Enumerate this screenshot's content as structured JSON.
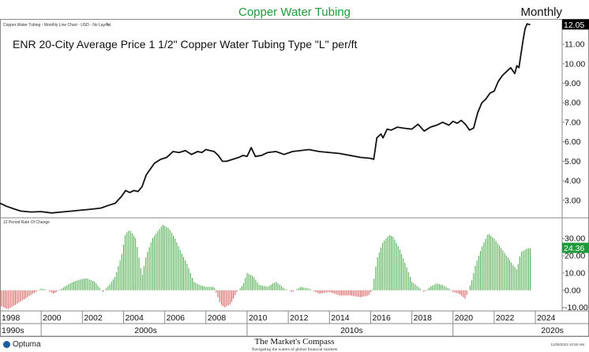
{
  "header": {
    "title": "Copper Water Tubing",
    "period": "Monthly",
    "top_label": "Copper Water Tubing - Monthly Line Chart - USD - No Layout"
  },
  "footer": {
    "logo_text": "Optuma",
    "brand": "The Market's Compass",
    "tagline": "Navigating the waters of global financial markets",
    "timestamp": "11/09/2023 10:50 AM"
  },
  "colors": {
    "price_line": "#111111",
    "up_bar": "#2e9e2e",
    "down_bar": "#d33c3c",
    "accent_green": "#1f9a3a",
    "last_price_bg": "#000000",
    "last_roc_bg": "#1f9a3a"
  },
  "chart_data": [
    {
      "type": "line",
      "title": "ENR 20-City Average Price 1 1/2\" Copper Water Tubing Type \"L\" per/ft",
      "xlabel": "",
      "ylabel": "",
      "x_range": [
        1998.0,
        2025.3
      ],
      "ylim": [
        2.1,
        12.3
      ],
      "y_ticks": [
        "3.00",
        "4.00",
        "5.00",
        "6.00",
        "7.00",
        "8.00",
        "9.00",
        "10.00",
        "11.00"
      ],
      "last_value_label": "12.05",
      "grid": false,
      "points": [
        [
          1998.0,
          2.85
        ],
        [
          1998.3,
          2.7
        ],
        [
          1998.7,
          2.55
        ],
        [
          1999.0,
          2.45
        ],
        [
          1999.5,
          2.4
        ],
        [
          2000.0,
          2.42
        ],
        [
          2000.5,
          2.35
        ],
        [
          2001.0,
          2.4
        ],
        [
          2001.5,
          2.45
        ],
        [
          2002.0,
          2.5
        ],
        [
          2002.5,
          2.55
        ],
        [
          2002.9,
          2.6
        ],
        [
          2003.3,
          2.75
        ],
        [
          2003.6,
          2.85
        ],
        [
          2003.9,
          3.2
        ],
        [
          2004.1,
          3.5
        ],
        [
          2004.3,
          3.4
        ],
        [
          2004.5,
          3.5
        ],
        [
          2004.7,
          3.45
        ],
        [
          2004.9,
          3.7
        ],
        [
          2005.1,
          4.3
        ],
        [
          2005.3,
          4.6
        ],
        [
          2005.5,
          4.9
        ],
        [
          2005.8,
          5.1
        ],
        [
          2006.1,
          5.2
        ],
        [
          2006.4,
          5.5
        ],
        [
          2006.7,
          5.45
        ],
        [
          2007.0,
          5.55
        ],
        [
          2007.3,
          5.35
        ],
        [
          2007.6,
          5.5
        ],
        [
          2007.8,
          5.45
        ],
        [
          2008.0,
          5.6
        ],
        [
          2008.2,
          5.55
        ],
        [
          2008.4,
          5.5
        ],
        [
          2008.6,
          5.3
        ],
        [
          2008.8,
          5.0
        ],
        [
          2009.0,
          5.0
        ],
        [
          2009.3,
          5.1
        ],
        [
          2009.6,
          5.2
        ],
        [
          2009.8,
          5.3
        ],
        [
          2010.0,
          5.25
        ],
        [
          2010.2,
          5.7
        ],
        [
          2010.4,
          5.25
        ],
        [
          2010.7,
          5.3
        ],
        [
          2011.0,
          5.45
        ],
        [
          2011.4,
          5.5
        ],
        [
          2011.8,
          5.35
        ],
        [
          2012.2,
          5.5
        ],
        [
          2012.6,
          5.55
        ],
        [
          2013.0,
          5.6
        ],
        [
          2013.5,
          5.5
        ],
        [
          2014.0,
          5.45
        ],
        [
          2014.5,
          5.4
        ],
        [
          2015.0,
          5.3
        ],
        [
          2015.5,
          5.2
        ],
        [
          2016.0,
          5.15
        ],
        [
          2016.15,
          5.1
        ],
        [
          2016.3,
          6.2
        ],
        [
          2016.5,
          6.4
        ],
        [
          2016.6,
          6.2
        ],
        [
          2016.8,
          6.65
        ],
        [
          2017.0,
          6.6
        ],
        [
          2017.3,
          6.75
        ],
        [
          2017.6,
          6.7
        ],
        [
          2018.0,
          6.65
        ],
        [
          2018.3,
          6.9
        ],
        [
          2018.6,
          6.55
        ],
        [
          2018.9,
          6.75
        ],
        [
          2019.2,
          6.85
        ],
        [
          2019.5,
          7.0
        ],
        [
          2019.8,
          6.85
        ],
        [
          2020.0,
          7.05
        ],
        [
          2020.2,
          6.95
        ],
        [
          2020.4,
          7.1
        ],
        [
          2020.6,
          6.9
        ],
        [
          2020.8,
          6.6
        ],
        [
          2021.0,
          6.7
        ],
        [
          2021.2,
          7.5
        ],
        [
          2021.4,
          8.0
        ],
        [
          2021.6,
          8.2
        ],
        [
          2021.8,
          8.5
        ],
        [
          2022.0,
          8.6
        ],
        [
          2022.2,
          9.1
        ],
        [
          2022.4,
          9.4
        ],
        [
          2022.6,
          9.6
        ],
        [
          2022.8,
          9.8
        ],
        [
          2023.0,
          9.5
        ],
        [
          2023.1,
          9.9
        ],
        [
          2023.2,
          9.8
        ],
        [
          2023.3,
          10.5
        ],
        [
          2023.4,
          11.2
        ],
        [
          2023.5,
          11.8
        ],
        [
          2023.6,
          12.05
        ],
        [
          2023.75,
          12.0
        ]
      ]
    },
    {
      "type": "bar",
      "title": "12 Period Rate Of Change",
      "xlabel": "",
      "ylabel": "",
      "x_range": [
        1998.0,
        2025.3
      ],
      "ylim": [
        -12,
        42
      ],
      "y_ticks": [
        "-10.00",
        "0.00",
        "10.00",
        "20.00",
        "30.00"
      ],
      "last_value_label": "24.36",
      "grid": false,
      "x_ticks": [
        "1998",
        "2000",
        "2002",
        "2004",
        "2006",
        "2008",
        "2010",
        "2012",
        "2014",
        "2016",
        "2018",
        "2020",
        "2022",
        "2024"
      ],
      "decades": [
        "1990s",
        "2000s",
        "2010s",
        "2020s"
      ],
      "profile": [
        [
          1998.0,
          -9
        ],
        [
          1998.4,
          -11
        ],
        [
          1998.8,
          -8
        ],
        [
          1999.2,
          -5
        ],
        [
          1999.6,
          -2
        ],
        [
          2000.0,
          1
        ],
        [
          2000.3,
          0
        ],
        [
          2000.6,
          -2
        ],
        [
          2001.0,
          1
        ],
        [
          2001.4,
          4
        ],
        [
          2001.8,
          6
        ],
        [
          2002.2,
          7
        ],
        [
          2002.6,
          5
        ],
        [
          2003.0,
          -1
        ],
        [
          2003.3,
          3
        ],
        [
          2003.6,
          8
        ],
        [
          2003.9,
          20
        ],
        [
          2004.1,
          33
        ],
        [
          2004.3,
          35
        ],
        [
          2004.6,
          30
        ],
        [
          2004.9,
          8
        ],
        [
          2005.1,
          20
        ],
        [
          2005.4,
          30
        ],
        [
          2005.7,
          35
        ],
        [
          2005.9,
          38
        ],
        [
          2006.2,
          36
        ],
        [
          2006.5,
          30
        ],
        [
          2006.8,
          22
        ],
        [
          2007.1,
          15
        ],
        [
          2007.4,
          5
        ],
        [
          2007.7,
          3
        ],
        [
          2008.0,
          2
        ],
        [
          2008.4,
          2
        ],
        [
          2008.7,
          -8
        ],
        [
          2008.9,
          -10
        ],
        [
          2009.2,
          -8
        ],
        [
          2009.5,
          -1
        ],
        [
          2009.8,
          3
        ],
        [
          2010.0,
          10
        ],
        [
          2010.3,
          8
        ],
        [
          2010.6,
          3
        ],
        [
          2011.0,
          2
        ],
        [
          2011.4,
          5
        ],
        [
          2011.8,
          1
        ],
        [
          2012.2,
          -1
        ],
        [
          2012.6,
          2
        ],
        [
          2013.0,
          1
        ],
        [
          2013.5,
          -2
        ],
        [
          2014.0,
          -1
        ],
        [
          2014.5,
          -3
        ],
        [
          2015.0,
          -3
        ],
        [
          2015.5,
          -4
        ],
        [
          2015.9,
          -3
        ],
        [
          2016.1,
          1
        ],
        [
          2016.3,
          18
        ],
        [
          2016.6,
          28
        ],
        [
          2016.9,
          32
        ],
        [
          2017.1,
          31
        ],
        [
          2017.4,
          24
        ],
        [
          2017.7,
          15
        ],
        [
          2018.0,
          5
        ],
        [
          2018.3,
          2
        ],
        [
          2018.6,
          -1
        ],
        [
          2018.9,
          2
        ],
        [
          2019.2,
          4
        ],
        [
          2019.5,
          3
        ],
        [
          2019.8,
          1
        ],
        [
          2020.0,
          -1
        ],
        [
          2020.3,
          -2
        ],
        [
          2020.6,
          -5
        ],
        [
          2020.9,
          5
        ],
        [
          2021.1,
          15
        ],
        [
          2021.4,
          25
        ],
        [
          2021.7,
          33
        ],
        [
          2022.0,
          30
        ],
        [
          2022.3,
          25
        ],
        [
          2022.6,
          20
        ],
        [
          2022.9,
          15
        ],
        [
          2023.1,
          12
        ],
        [
          2023.3,
          22
        ],
        [
          2023.6,
          24.36
        ],
        [
          2023.75,
          24.36
        ]
      ]
    }
  ]
}
